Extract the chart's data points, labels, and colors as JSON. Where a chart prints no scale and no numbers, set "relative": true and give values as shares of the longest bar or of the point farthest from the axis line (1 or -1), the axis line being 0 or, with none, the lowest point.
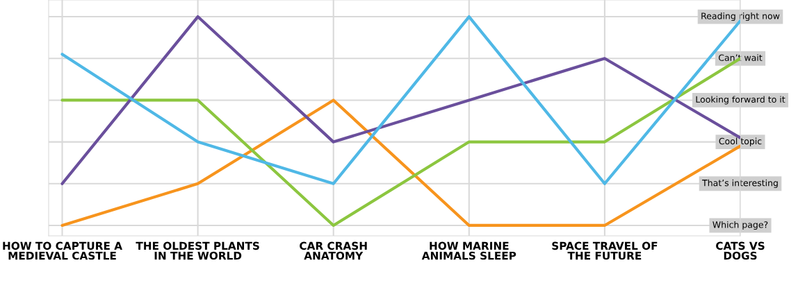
{
  "chart_data": {
    "type": "line",
    "relative": true,
    "categories": [
      "HOW TO CAPTURE A\nMEDIEVAL CASTLE",
      "THE OLDEST PLANTS\nIN THE WORLD",
      "CAR CRASH\nANATOMY",
      "HOW MARINE\nANIMALS SLEEP",
      "SPACE TRAVEL OF\nTHE FUTURE",
      "CATS VS\nDOGS"
    ],
    "grid": true,
    "annotations": [
      "Which page?",
      "That’s interesting",
      "Cool topic",
      "Looking forward to it",
      "Can’t wait",
      "Reading right now"
    ],
    "series": [
      {
        "color": "#f7941d",
        "values": [
          0,
          0.2,
          0.6,
          0,
          0,
          0.38
        ]
      },
      {
        "color": "#8cc63f",
        "values": [
          0.6,
          0.6,
          0,
          0.4,
          0.4,
          0.8
        ]
      },
      {
        "color": "#6a4f9c",
        "values": [
          0.2,
          1,
          0.4,
          0.6,
          0.8,
          0.42
        ]
      },
      {
        "color": "#4fb8e6",
        "values": [
          0.82,
          0.4,
          0.2,
          1,
          0.2,
          0.98
        ]
      }
    ]
  }
}
